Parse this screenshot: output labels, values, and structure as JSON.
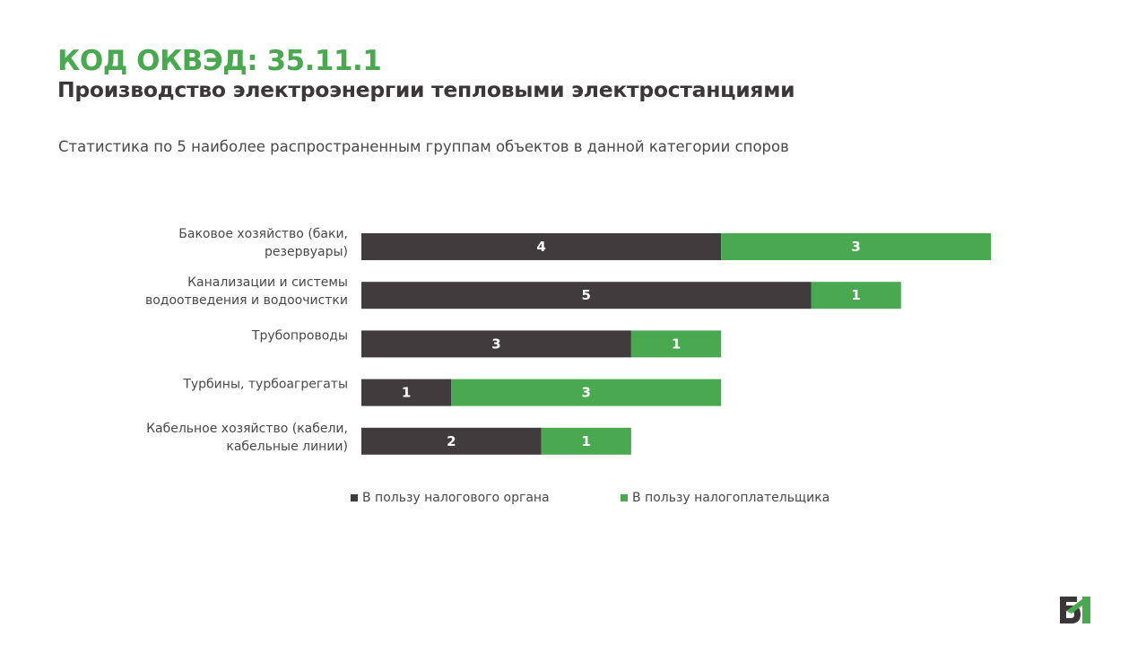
{
  "header": {
    "code": "КОД ОКВЭД: 35.11.1",
    "title": "Производство электроэнергии тепловыми электростанциями",
    "subtitle": "Статистика по 5 наиболее распространенным группам объектов в данной категории споров"
  },
  "colors": {
    "tax_authority": "#403c3d",
    "taxpayer": "#4aa851",
    "label_text": "#4a4748"
  },
  "chart_data": {
    "type": "bar",
    "orientation": "horizontal",
    "stacked": true,
    "categories": [
      [
        "Баковое хозяйство (баки,",
        "резервуары)"
      ],
      [
        "Канализации и системы",
        "водоотведения и водоочистки"
      ],
      [
        "Трубопроводы"
      ],
      [
        "Турбины, турбоагрегаты"
      ],
      [
        "Кабельное хозяйство (кабели,",
        "кабельные линии)"
      ]
    ],
    "series": [
      {
        "name": "В пользу налогового органа",
        "values": [
          4,
          5,
          3,
          1,
          2
        ],
        "color": "#403c3d"
      },
      {
        "name": "В пользу налогоплательщика",
        "values": [
          3,
          1,
          1,
          3,
          1
        ],
        "color": "#4aa851"
      }
    ],
    "xlim": [
      0,
      7
    ],
    "grid": false,
    "legend_position": "bottom",
    "data_labels": true
  },
  "logo": {
    "icon": "company-logo-icon"
  }
}
